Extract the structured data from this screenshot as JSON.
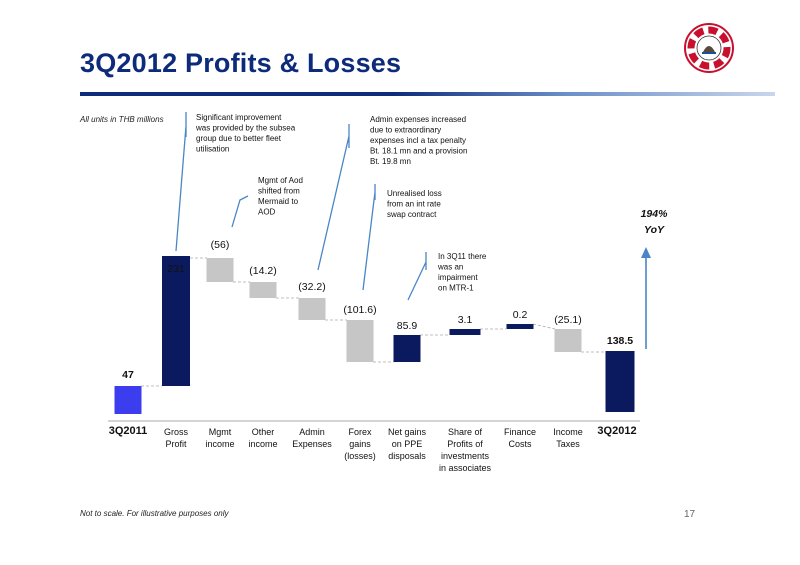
{
  "slide": {
    "title": "3Q2012 Profits & Losses",
    "units_note": "All units in THB millions",
    "footnote": "Not to scale.  For illustrative purposes only",
    "page_number": "17"
  },
  "colors": {
    "title": "#0d2b7a",
    "start_bar": "#3d3df0",
    "positive": "#0b1a5e",
    "negative": "#c6c6c6",
    "arrow": "#4a86c5"
  },
  "chart_data": {
    "type": "bar",
    "subtype": "waterfall",
    "note": "Not to scale",
    "steps": [
      {
        "lines": [
          "3Q2011"
        ],
        "value": 47,
        "label": "47",
        "kind": "start"
      },
      {
        "lines": [
          "Gross",
          "Profit"
        ],
        "value": 231,
        "label": "231",
        "kind": "positive"
      },
      {
        "lines": [
          "Mgmt",
          "income"
        ],
        "value": -56,
        "label": "(56)",
        "kind": "negative"
      },
      {
        "lines": [
          "Other",
          "income"
        ],
        "value": -14.2,
        "label": "(14.2)",
        "kind": "negative"
      },
      {
        "lines": [
          "Admin",
          "Expenses"
        ],
        "value": -32.2,
        "label": "(32.2)",
        "kind": "negative"
      },
      {
        "lines": [
          "Forex",
          "gains",
          "(losses)"
        ],
        "value": -101.6,
        "label": "(101.6)",
        "kind": "negative"
      },
      {
        "lines": [
          "Net gains",
          "on PPE",
          "disposals"
        ],
        "value": 85.9,
        "label": "85.9",
        "kind": "positive"
      },
      {
        "lines": [
          "Share of",
          "Profits of",
          "investments",
          "in associates"
        ],
        "value": 3.1,
        "label": "3.1",
        "kind": "positive"
      },
      {
        "lines": [
          "Finance",
          "Costs"
        ],
        "value": 0.2,
        "label": "0.2",
        "kind": "positive"
      },
      {
        "lines": [
          "Income",
          "Taxes"
        ],
        "value": -25.1,
        "label": "(25.1)",
        "kind": "negative"
      },
      {
        "lines": [
          "3Q2012"
        ],
        "value": 138.5,
        "label": "138.5",
        "kind": "end"
      }
    ],
    "growth_callout": {
      "lines": [
        "194%",
        "YoY"
      ]
    },
    "annotations": [
      {
        "target": "Gross Profit",
        "lines": [
          "Significant improvement",
          "was provided by the subsea",
          "group due to better fleet",
          "utilisation"
        ]
      },
      {
        "target": "Mgmt income",
        "lines": [
          "Mgmt of Aod",
          "shifted from",
          "Mermaid to",
          "AOD"
        ]
      },
      {
        "target": "Admin Expenses",
        "lines": [
          "Admin expenses increased",
          "due to extraordinary",
          "expenses incl a tax penalty",
          "Bt. 18.1 mn and a provision",
          "Bt. 19.8 mn"
        ]
      },
      {
        "target": "Forex gains (losses)",
        "lines": [
          "Unrealised loss",
          "from an int rate",
          "swap contract"
        ]
      },
      {
        "target": "Net gains on PPE disposals",
        "lines": [
          "In 3Q11  there",
          "was an",
          "impairment",
          "on MTR-1"
        ]
      }
    ]
  }
}
